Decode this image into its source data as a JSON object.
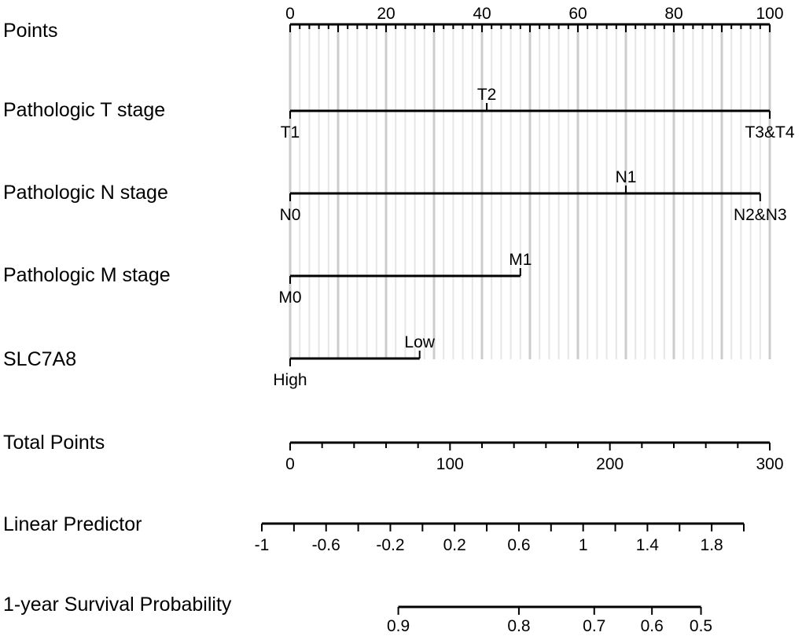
{
  "chart_data": {
    "type": "nomogram",
    "title": "",
    "points_axis": {
      "label": "Points",
      "range": [
        0,
        100
      ],
      "tick_labels": [
        "0",
        "20",
        "40",
        "60",
        "80",
        "100"
      ],
      "major_ticks": [
        0,
        10,
        20,
        30,
        40,
        50,
        60,
        70,
        80,
        90,
        100
      ],
      "minor_step": 2
    },
    "variables": [
      {
        "label": "Pathologic T stage",
        "levels": [
          {
            "label": "T1",
            "points": 0,
            "label_side": "below"
          },
          {
            "label": "T2",
            "points": 41,
            "label_side": "above"
          },
          {
            "label": "T3&T4",
            "points": 100,
            "label_side": "below"
          }
        ]
      },
      {
        "label": "Pathologic N stage",
        "levels": [
          {
            "label": "N0",
            "points": 0,
            "label_side": "below"
          },
          {
            "label": "N1",
            "points": 70,
            "label_side": "above"
          },
          {
            "label": "N2&N3",
            "points": 98,
            "label_side": "below"
          }
        ]
      },
      {
        "label": "Pathologic M stage",
        "levels": [
          {
            "label": "M0",
            "points": 0,
            "label_side": "below"
          },
          {
            "label": "M1",
            "points": 48,
            "label_side": "above"
          }
        ]
      },
      {
        "label": "SLC7A8",
        "levels": [
          {
            "label": "High",
            "points": 0,
            "label_side": "below"
          },
          {
            "label": "Low",
            "points": 27,
            "label_side": "above"
          }
        ]
      }
    ],
    "total_points": {
      "label": "Total Points",
      "range": [
        0,
        300
      ],
      "tick_labels": [
        "0",
        "100",
        "200",
        "300"
      ],
      "ticks": [
        0,
        20,
        40,
        60,
        80,
        100,
        120,
        140,
        160,
        180,
        200,
        220,
        240,
        260,
        280,
        300
      ]
    },
    "linear_predictor": {
      "label": "Linear Predictor",
      "range": [
        -1,
        2
      ],
      "tick_labels": [
        "-1",
        "-0.6",
        "-0.2",
        "0.2",
        "0.6",
        "1",
        "1.4",
        "1.8"
      ],
      "ticks": [
        -1,
        -0.8,
        -0.6,
        -0.4,
        -0.2,
        0,
        0.2,
        0.4,
        0.6,
        0.8,
        1,
        1.2,
        1.4,
        1.6,
        1.8,
        2
      ]
    },
    "survival": {
      "label": "1-year Survival Probability",
      "tick_labels": [
        "0.9",
        "0.8",
        "0.7",
        "0.6",
        "0.5"
      ],
      "ticks": [
        0.9,
        0.8,
        0.7,
        0.6,
        0.5
      ]
    }
  }
}
